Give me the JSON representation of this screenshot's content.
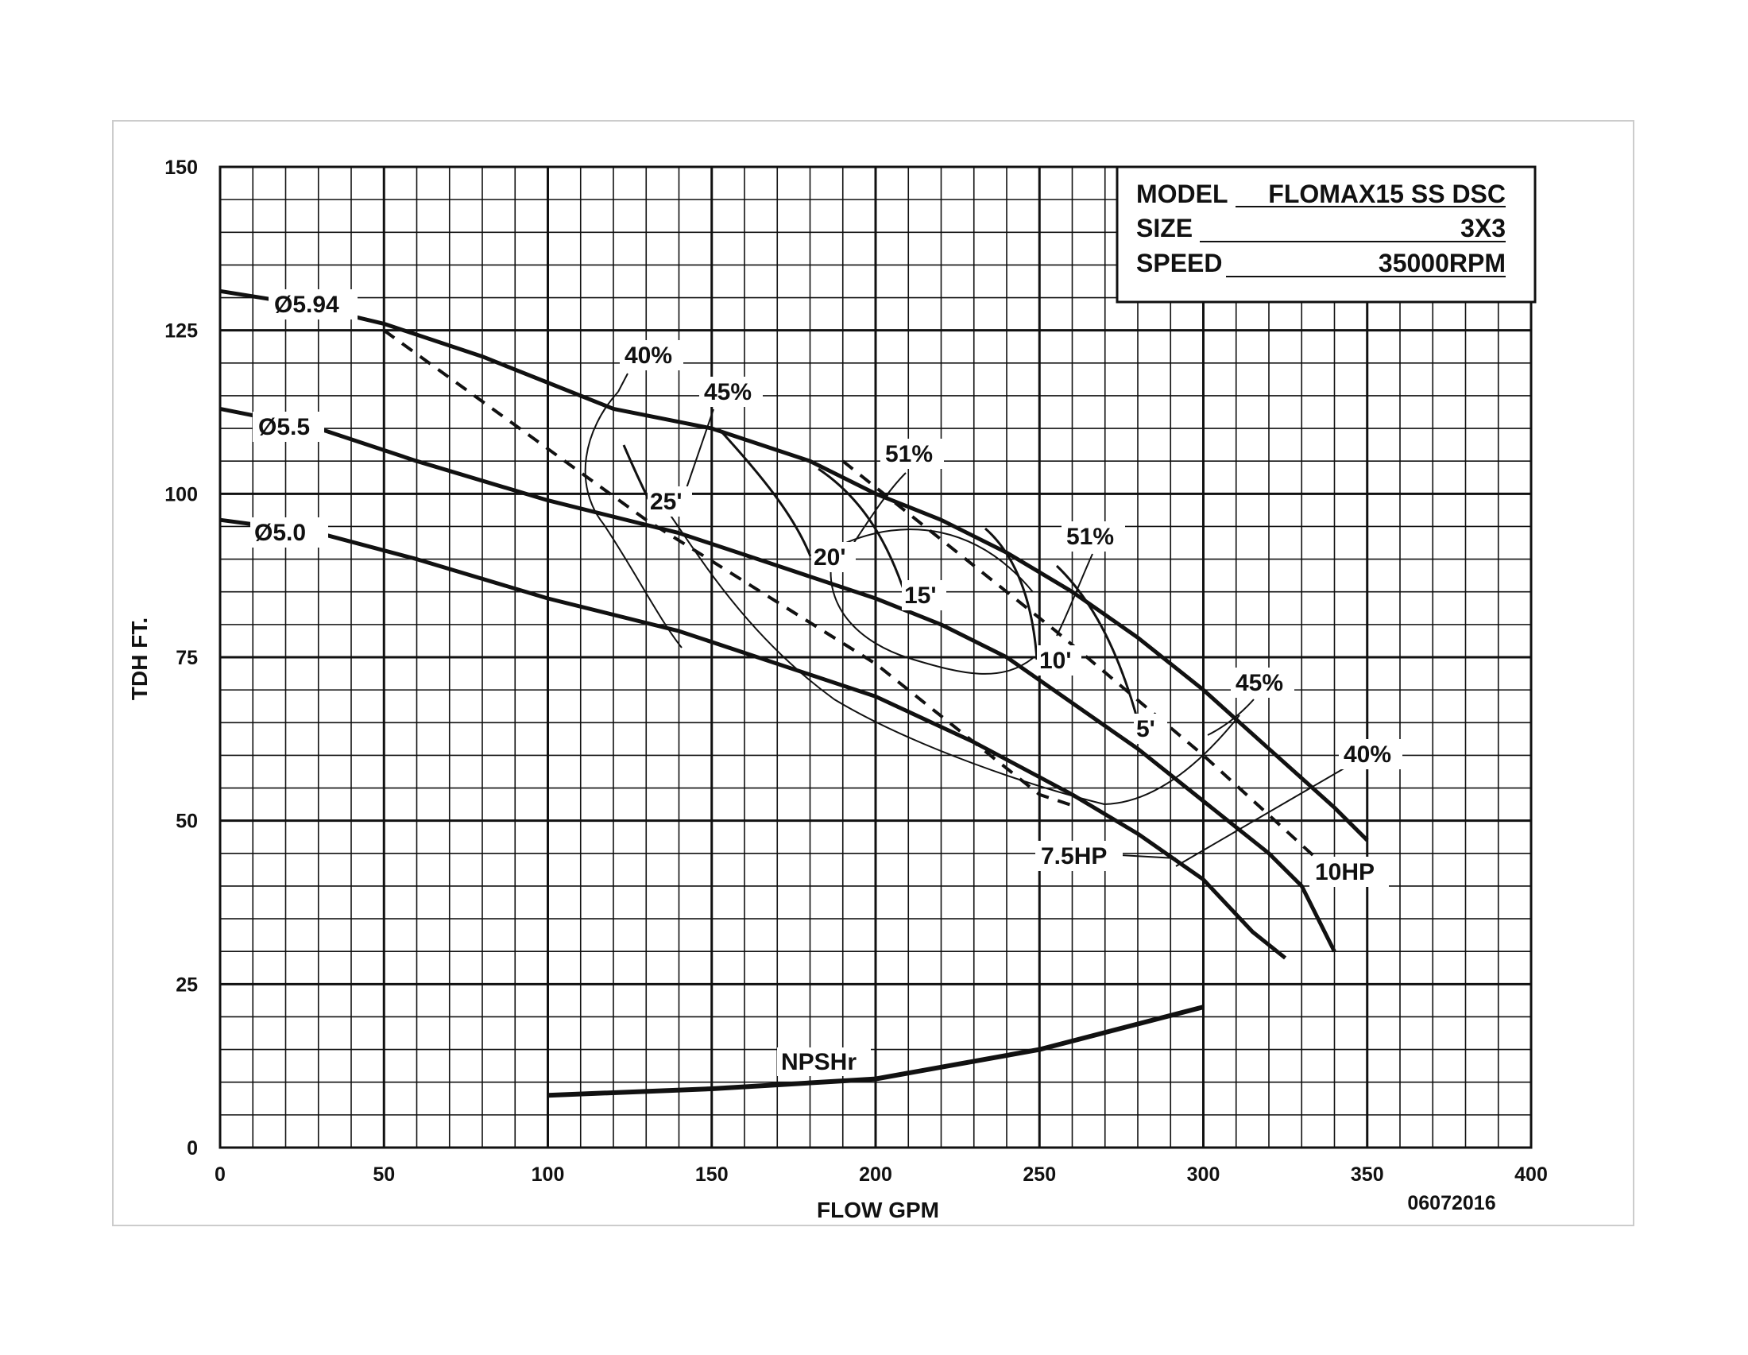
{
  "chart_data": {
    "type": "line",
    "xlabel": "FLOW GPM",
    "ylabel": "TDH FT.",
    "xlim": [
      0,
      400
    ],
    "ylim": [
      0,
      150
    ],
    "x_ticks": [
      0,
      50,
      100,
      150,
      200,
      250,
      300,
      350,
      400
    ],
    "y_ticks": [
      0,
      25,
      50,
      75,
      100,
      125,
      150
    ],
    "grid": true,
    "colors": {
      "ink": "#111111",
      "background": "#ffffff"
    },
    "info_box": {
      "model_label": "MODEL",
      "model_value": "FLOMAX15 SS DSC",
      "size_label": "SIZE",
      "size_value": "3X3",
      "speed_label": "SPEED",
      "speed_value": "35000RPM"
    },
    "footer_code": "06072016",
    "impeller_curves": [
      {
        "name": "Ø5.94",
        "points": [
          [
            0,
            131
          ],
          [
            25,
            129
          ],
          [
            50,
            126
          ],
          [
            80,
            121
          ],
          [
            100,
            117
          ],
          [
            120,
            113
          ],
          [
            150,
            110
          ],
          [
            180,
            105
          ],
          [
            200,
            100
          ],
          [
            220,
            96
          ],
          [
            240,
            91
          ],
          [
            260,
            85
          ],
          [
            280,
            78
          ],
          [
            300,
            70
          ],
          [
            320,
            61
          ],
          [
            340,
            52
          ],
          [
            350,
            47
          ]
        ]
      },
      {
        "name": "Ø5.5",
        "points": [
          [
            0,
            113
          ],
          [
            30,
            110
          ],
          [
            60,
            105
          ],
          [
            100,
            99
          ],
          [
            140,
            94
          ],
          [
            170,
            89
          ],
          [
            200,
            84
          ],
          [
            220,
            80
          ],
          [
            240,
            75
          ],
          [
            260,
            68
          ],
          [
            280,
            61
          ],
          [
            300,
            53
          ],
          [
            320,
            45
          ],
          [
            330,
            40
          ],
          [
            340,
            30
          ]
        ]
      },
      {
        "name": "Ø5.0",
        "points": [
          [
            0,
            96
          ],
          [
            30,
            94
          ],
          [
            60,
            90
          ],
          [
            100,
            84
          ],
          [
            140,
            79
          ],
          [
            170,
            74
          ],
          [
            200,
            69
          ],
          [
            230,
            62
          ],
          [
            260,
            54
          ],
          [
            280,
            48
          ],
          [
            300,
            41
          ],
          [
            315,
            33
          ],
          [
            325,
            29
          ]
        ]
      }
    ],
    "npshr": {
      "name": "NPSHr",
      "points": [
        [
          100,
          8
        ],
        [
          150,
          9
        ],
        [
          200,
          10.5
        ],
        [
          250,
          15
        ],
        [
          300,
          21.5
        ]
      ]
    },
    "hp_lines": [
      {
        "name": "7.5HP",
        "points": [
          [
            50,
            125
          ],
          [
            130,
            96
          ],
          [
            200,
            74
          ],
          [
            250,
            54
          ],
          [
            262,
            52
          ]
        ]
      },
      {
        "name": "10HP",
        "points": [
          [
            190,
            105
          ],
          [
            255,
            79
          ],
          [
            300,
            60
          ],
          [
            335,
            44
          ]
        ]
      }
    ],
    "efficiency_labels": [
      "40%",
      "45%",
      "51%",
      "51%",
      "45%",
      "40%"
    ],
    "suction_labels": [
      "25'",
      "20'",
      "15'",
      "10'",
      "5'"
    ]
  }
}
